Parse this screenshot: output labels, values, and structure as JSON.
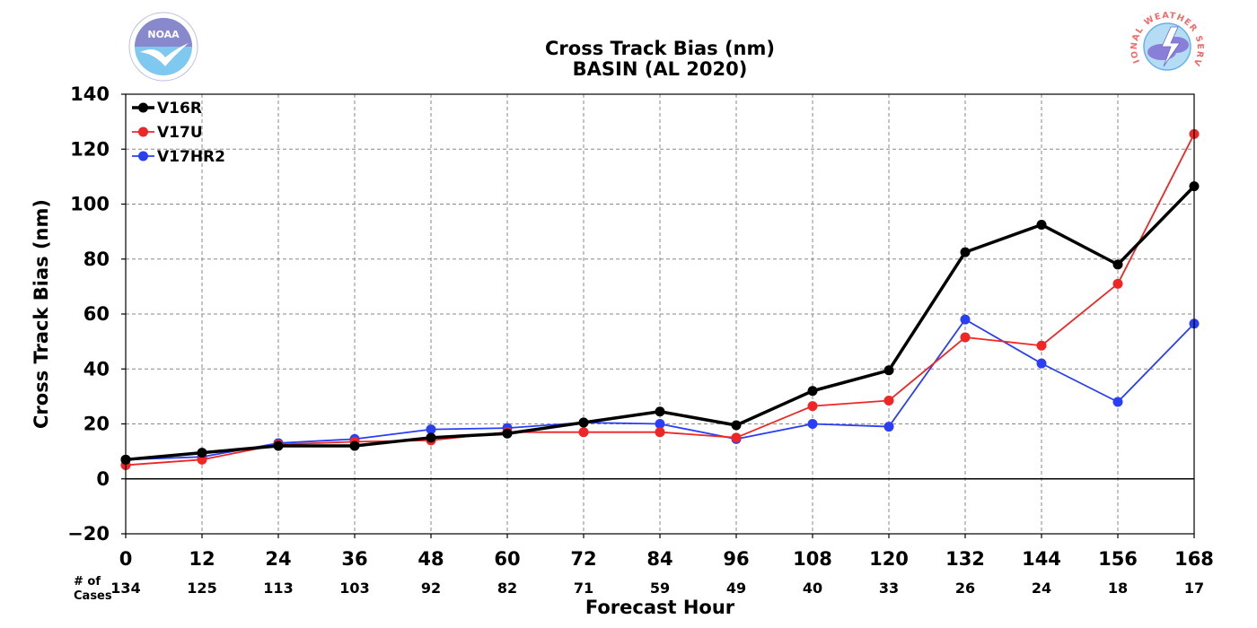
{
  "logos": {
    "left": {
      "icon": "noaa-logo-icon",
      "text": "NOAA"
    },
    "right": {
      "icon": "national-weather-service-logo-icon",
      "text": "NATIONAL WEATHER SERVICE"
    }
  },
  "chart_data": {
    "type": "line",
    "title": "Cross Track Bias (nm)",
    "subtitle": "BASIN (AL 2020)",
    "xlabel": "Forecast Hour",
    "ylabel": "Cross Track Bias (nm)",
    "x": [
      0,
      12,
      24,
      36,
      48,
      60,
      72,
      84,
      96,
      108,
      120,
      132,
      144,
      156,
      168
    ],
    "xlim": [
      0,
      168
    ],
    "ylim": [
      -20,
      140
    ],
    "yticks": [
      -20,
      0,
      20,
      40,
      60,
      80,
      100,
      120,
      140
    ],
    "grid": true,
    "legend_position": "top-left",
    "cases_label": "# of\nCases",
    "cases": [
      134,
      125,
      113,
      103,
      92,
      82,
      71,
      59,
      49,
      40,
      33,
      26,
      24,
      18,
      17
    ],
    "series": [
      {
        "name": "V16R",
        "color": "#000000",
        "width": 3.5,
        "values": [
          7,
          9.5,
          12,
          12,
          15,
          16.5,
          20.5,
          24.5,
          19.5,
          32,
          39.5,
          82.5,
          92.5,
          78,
          106.5
        ]
      },
      {
        "name": "V17U",
        "color": "#f02626",
        "width": 1.8,
        "values": [
          5,
          7,
          12.5,
          13.5,
          14,
          17,
          17,
          17,
          15,
          26.5,
          28.5,
          51.5,
          48.5,
          71,
          125.5
        ]
      },
      {
        "name": "V17HR2",
        "color": "#2a3ef5",
        "width": 1.8,
        "values": [
          7,
          8,
          13,
          14.5,
          18,
          18.5,
          20.5,
          20,
          14.5,
          20,
          19,
          58,
          42,
          28,
          56.5
        ]
      }
    ]
  }
}
